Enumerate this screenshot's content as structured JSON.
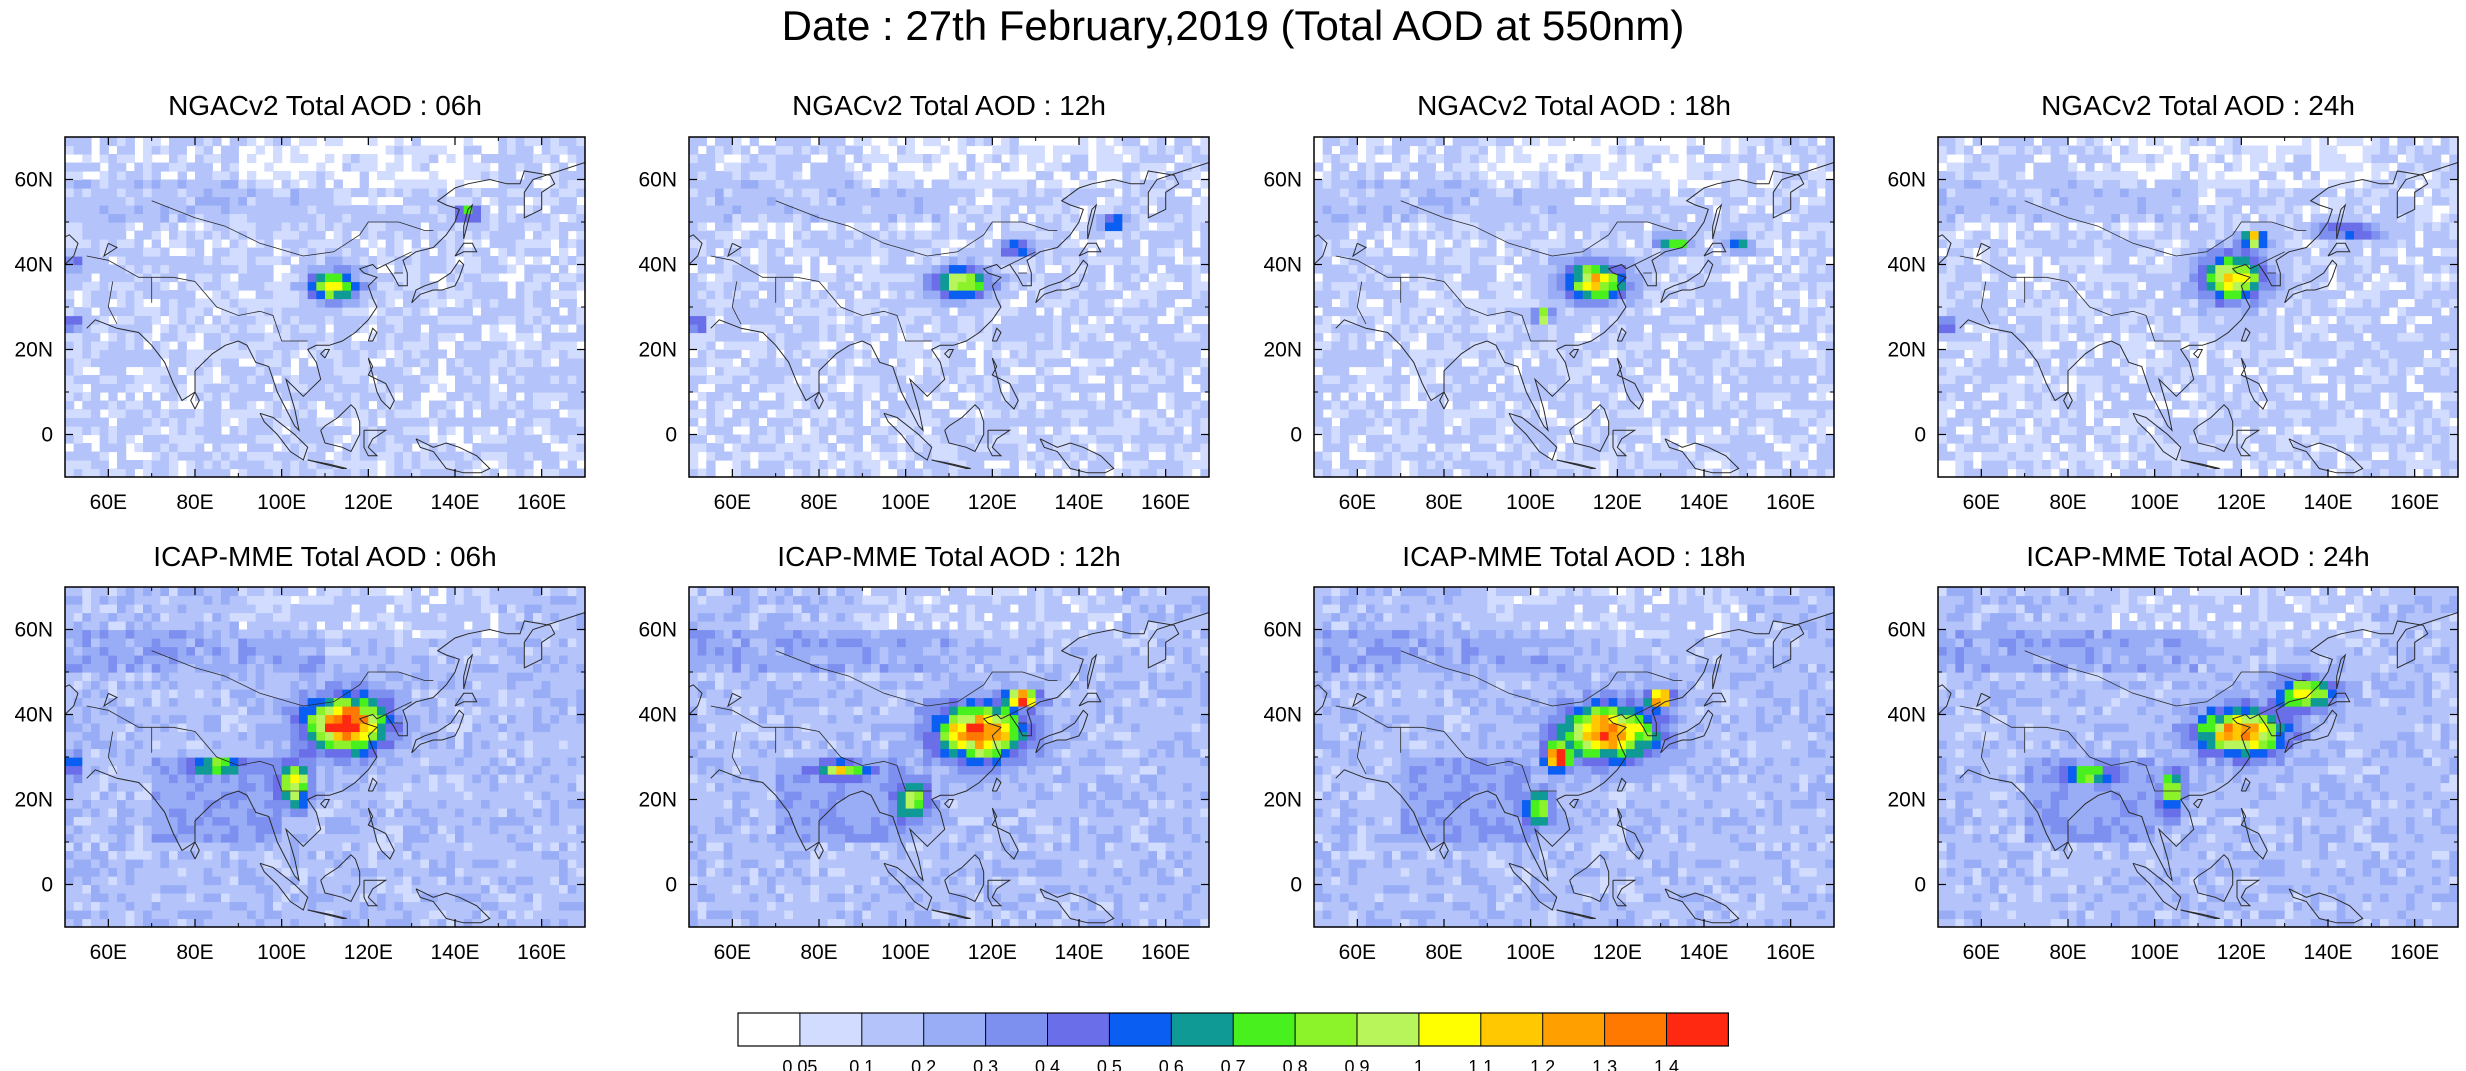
{
  "title": "Date : 27th February,2019 (Total AOD at 550nm)",
  "chart_data": {
    "type": "heatmap",
    "x_ticks": [
      "60E",
      "80E",
      "100E",
      "120E",
      "140E",
      "160E"
    ],
    "y_ticks": [
      "60N",
      "40N",
      "20N",
      "0"
    ],
    "x_tick_values": [
      60,
      80,
      100,
      120,
      140,
      160
    ],
    "y_tick_values": [
      60,
      40,
      20,
      0
    ],
    "xlim": [
      50,
      170
    ],
    "ylim": [
      -10,
      70
    ],
    "panels": [
      {
        "title": "NGACv2 Total AOD : 06h",
        "model": "NGACv2",
        "hour": 6,
        "hotspots": [
          [
            112,
            35,
            6,
            4,
            0.95
          ],
          [
            143,
            52,
            3,
            2,
            0.7
          ],
          [
            52,
            26,
            2,
            2,
            0.6
          ],
          [
            52,
            40,
            2,
            2,
            0.55
          ]
        ]
      },
      {
        "title": "NGACv2 Total AOD : 12h",
        "model": "NGACv2",
        "hour": 12,
        "hotspots": [
          [
            113,
            36,
            7,
            4,
            0.9
          ],
          [
            126,
            44,
            4,
            2,
            0.65
          ],
          [
            148,
            50,
            3,
            2,
            0.6
          ],
          [
            52,
            26,
            2,
            2,
            0.55
          ]
        ]
      },
      {
        "title": "NGACv2 Total AOD : 18h",
        "model": "NGACv2",
        "hour": 18,
        "hotspots": [
          [
            115,
            36,
            8,
            5,
            1.0
          ],
          [
            133,
            45,
            4,
            2,
            0.7
          ],
          [
            148,
            45,
            3,
            2,
            0.55
          ],
          [
            103,
            28,
            2,
            2,
            1.1
          ]
        ]
      },
      {
        "title": "NGACv2 Total AOD : 24h",
        "model": "NGACv2",
        "hour": 24,
        "hotspots": [
          [
            118,
            37,
            8,
            6,
            1.05
          ],
          [
            123,
            46,
            3,
            2,
            1.25
          ],
          [
            145,
            48,
            8,
            2,
            0.55
          ],
          [
            52,
            26,
            2,
            2,
            0.55
          ]
        ]
      },
      {
        "title": "ICAP-MME Total AOD : 06h",
        "model": "ICAP-MME",
        "hour": 6,
        "hotspots": [
          [
            115,
            38,
            10,
            7,
            1.35
          ],
          [
            103,
            24,
            4,
            6,
            0.9
          ],
          [
            85,
            28,
            6,
            2,
            0.7
          ],
          [
            52,
            28,
            2,
            3,
            0.6
          ]
        ]
      },
      {
        "title": "ICAP-MME Total AOD : 12h",
        "model": "ICAP-MME",
        "hour": 12,
        "hotspots": [
          [
            117,
            36,
            11,
            7,
            1.25
          ],
          [
            127,
            44,
            4,
            2,
            1.4
          ],
          [
            102,
            20,
            4,
            5,
            0.85
          ],
          [
            85,
            27,
            6,
            2,
            0.75
          ]
        ]
      },
      {
        "title": "ICAP-MME Total AOD : 18h",
        "model": "ICAP-MME",
        "hour": 18,
        "hotspots": [
          [
            118,
            36,
            12,
            7,
            1.2
          ],
          [
            130,
            44,
            3,
            2,
            1.35
          ],
          [
            106,
            30,
            3,
            3,
            1.35
          ],
          [
            102,
            18,
            3,
            5,
            0.8
          ]
        ]
      },
      {
        "title": "ICAP-MME Total AOD : 24h",
        "model": "ICAP-MME",
        "hour": 24,
        "hotspots": [
          [
            120,
            36,
            11,
            6,
            1.15
          ],
          [
            135,
            45,
            7,
            4,
            0.9
          ],
          [
            104,
            22,
            3,
            6,
            0.8
          ],
          [
            85,
            26,
            6,
            2,
            0.7
          ]
        ]
      }
    ],
    "colorbar": {
      "labels": [
        "0.05",
        "0.1",
        "0.2",
        "0.3",
        "0.4",
        "0.5",
        "0.6",
        "0.7",
        "0.8",
        "0.9",
        "1",
        "1.1",
        "1.2",
        "1.3",
        "1.4"
      ],
      "colors": [
        "#ffffff",
        "#d2dcff",
        "#b4c4fa",
        "#98adf5",
        "#7d90f0",
        "#6a6ee8",
        "#0a5ef2",
        "#0f9a96",
        "#48f01e",
        "#8cf22a",
        "#b8f55a",
        "#ffff00",
        "#ffc800",
        "#ffa000",
        "#ff7800",
        "#ff2810"
      ]
    }
  }
}
